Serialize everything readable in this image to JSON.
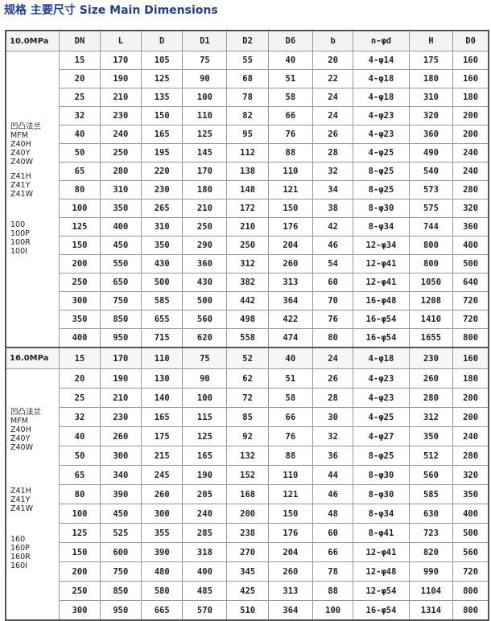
{
  "title": "规格  主要尺寸 Size Main Dimensions",
  "columns": [
    "DN",
    "L",
    "D",
    "D1",
    "D2",
    "D6",
    "b",
    "n-φd",
    "H",
    "D0"
  ],
  "sections": [
    {
      "pressure": "10.0MPa",
      "groups": [
        [
          "凹凸法兰",
          "MFM",
          "Z40H",
          "Z40Y",
          "Z40W"
        ],
        [
          "Z41H",
          "Z41Y",
          "Z41W"
        ],
        [
          "100",
          "100P",
          "100R",
          "100I"
        ]
      ],
      "rows": [
        [
          "15",
          "170",
          "105",
          "75",
          "55",
          "40",
          "20",
          "4-φ14",
          "175",
          "160"
        ],
        [
          "20",
          "190",
          "125",
          "90",
          "68",
          "51",
          "22",
          "4-φ18",
          "180",
          "160"
        ],
        [
          "25",
          "210",
          "135",
          "100",
          "78",
          "58",
          "24",
          "4-φ18",
          "310",
          "180"
        ],
        [
          "32",
          "230",
          "150",
          "110",
          "82",
          "66",
          "24",
          "4-φ23",
          "320",
          "200"
        ],
        [
          "40",
          "240",
          "165",
          "125",
          "95",
          "76",
          "26",
          "4-φ23",
          "360",
          "200"
        ],
        [
          "50",
          "250",
          "195",
          "145",
          "112",
          "88",
          "28",
          "4-φ25",
          "490",
          "240"
        ],
        [
          "65",
          "280",
          "220",
          "170",
          "138",
          "110",
          "32",
          "8-φ25",
          "540",
          "240"
        ],
        [
          "80",
          "310",
          "230",
          "180",
          "148",
          "121",
          "34",
          "8-φ25",
          "573",
          "280"
        ],
        [
          "100",
          "350",
          "265",
          "210",
          "172",
          "150",
          "38",
          "8-φ30",
          "575",
          "320"
        ],
        [
          "125",
          "400",
          "310",
          "250",
          "210",
          "176",
          "42",
          "8-φ34",
          "744",
          "360"
        ],
        [
          "150",
          "450",
          "350",
          "290",
          "250",
          "204",
          "46",
          "12-φ34",
          "800",
          "400"
        ],
        [
          "200",
          "550",
          "430",
          "360",
          "312",
          "260",
          "54",
          "12-φ41",
          "800",
          "500"
        ],
        [
          "250",
          "650",
          "500",
          "430",
          "382",
          "313",
          "60",
          "12-φ41",
          "1050",
          "640"
        ],
        [
          "300",
          "750",
          "585",
          "500",
          "442",
          "364",
          "70",
          "16-φ48",
          "1208",
          "720"
        ],
        [
          "350",
          "850",
          "655",
          "560",
          "498",
          "422",
          "76",
          "16-φ54",
          "1410",
          "720"
        ],
        [
          "400",
          "950",
          "715",
          "620",
          "558",
          "474",
          "80",
          "16-φ54",
          "1655",
          "800"
        ]
      ]
    },
    {
      "pressure": "16.0MPa",
      "groups": [
        [
          "凹凸法兰",
          "MFM",
          "Z40H",
          "Z40Y",
          "Z40W"
        ],
        [
          "Z41H",
          "Z41Y",
          "Z41W"
        ],
        [
          "160",
          "160P",
          "160R",
          "160I"
        ]
      ],
      "rows": [
        [
          "15",
          "170",
          "110",
          "75",
          "52",
          "40",
          "24",
          "4-φ18",
          "230",
          "160"
        ],
        [
          "20",
          "190",
          "130",
          "90",
          "62",
          "51",
          "26",
          "4-φ23",
          "260",
          "180"
        ],
        [
          "25",
          "210",
          "140",
          "100",
          "72",
          "58",
          "28",
          "4-φ23",
          "280",
          "200"
        ],
        [
          "32",
          "230",
          "165",
          "115",
          "85",
          "66",
          "30",
          "4-φ25",
          "312",
          "200"
        ],
        [
          "40",
          "260",
          "175",
          "125",
          "92",
          "76",
          "32",
          "4-φ27",
          "350",
          "240"
        ],
        [
          "50",
          "300",
          "215",
          "165",
          "132",
          "88",
          "36",
          "8-φ25",
          "512",
          "280"
        ],
        [
          "65",
          "340",
          "245",
          "190",
          "152",
          "110",
          "44",
          "8-φ30",
          "560",
          "320"
        ],
        [
          "80",
          "390",
          "260",
          "205",
          "168",
          "121",
          "46",
          "8-φ30",
          "585",
          "350"
        ],
        [
          "100",
          "450",
          "300",
          "240",
          "200",
          "150",
          "48",
          "8-φ34",
          "630",
          "400"
        ],
        [
          "125",
          "525",
          "355",
          "285",
          "238",
          "176",
          "60",
          "8-φ41",
          "723",
          "500"
        ],
        [
          "150",
          "600",
          "390",
          "318",
          "270",
          "204",
          "66",
          "12-φ41",
          "820",
          "560"
        ],
        [
          "200",
          "750",
          "480",
          "400",
          "345",
          "260",
          "78",
          "12-φ48",
          "990",
          "720"
        ],
        [
          "250",
          "850",
          "580",
          "485",
          "425",
          "313",
          "88",
          "12-φ54",
          "1104",
          "800"
        ],
        [
          "300",
          "950",
          "665",
          "570",
          "510",
          "364",
          "100",
          "16-φ54",
          "1314",
          "800"
        ]
      ]
    }
  ]
}
